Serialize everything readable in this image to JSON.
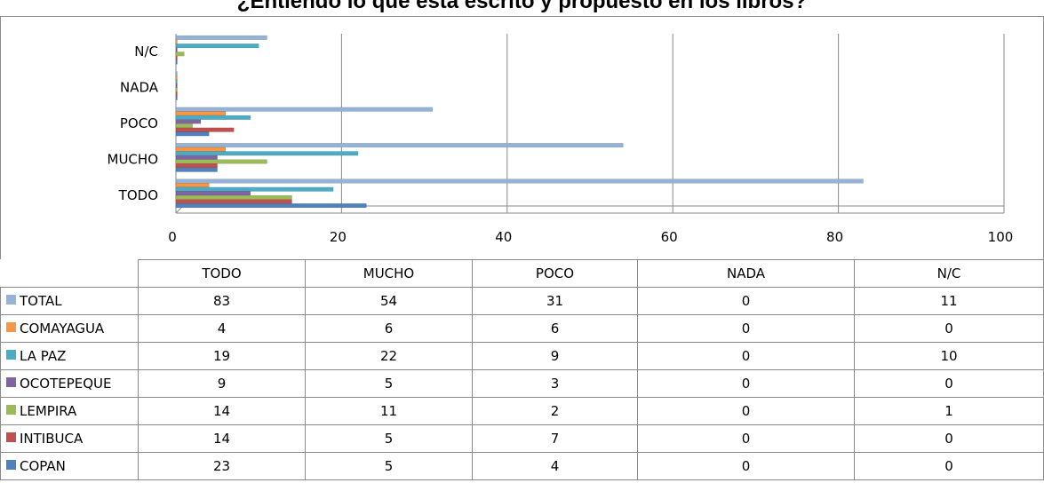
{
  "chart_data": {
    "type": "bar",
    "orientation": "horizontal",
    "title": "¿Entiendo lo que esta escrito y propuesto en los libros?",
    "categories": [
      "TODO",
      "MUCHO",
      "POCO",
      "NADA",
      "N/C"
    ],
    "xlim": [
      0,
      100
    ],
    "x_ticks": [
      "0",
      "20",
      "40",
      "60",
      "80",
      "100"
    ],
    "grid": true,
    "legend": "data-table",
    "series": [
      {
        "name": "TOTAL",
        "color": "#95b3d7",
        "values": [
          83,
          54,
          31,
          0,
          11
        ]
      },
      {
        "name": "COMAYAGUA",
        "color": "#f79646",
        "values": [
          4,
          6,
          6,
          0,
          0
        ]
      },
      {
        "name": "LA PAZ",
        "color": "#4bacc6",
        "values": [
          19,
          22,
          9,
          0,
          10
        ]
      },
      {
        "name": "OCOTEPEQUE",
        "color": "#8064a2",
        "values": [
          9,
          5,
          3,
          0,
          0
        ]
      },
      {
        "name": "LEMPIRA",
        "color": "#9bbb59",
        "values": [
          14,
          11,
          2,
          0,
          1
        ]
      },
      {
        "name": "INTIBUCA",
        "color": "#c0504d",
        "values": [
          14,
          5,
          7,
          0,
          0
        ]
      },
      {
        "name": "COPAN",
        "color": "#4f81bd",
        "values": [
          23,
          5,
          4,
          0,
          0
        ]
      }
    ]
  }
}
